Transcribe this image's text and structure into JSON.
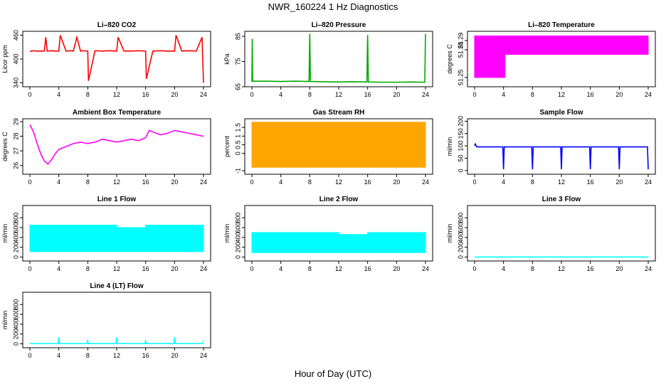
{
  "title": "NWR_160224  1 Hz Diagnostics",
  "x_axis_label": "Hour of Day (UTC)",
  "chart_data": [
    {
      "type": "line",
      "title": "Li–820 CO2",
      "ylabel": "Licor ppm",
      "color": "#ff0000",
      "xlim": [
        0,
        24
      ],
      "xticks": [
        0,
        4,
        8,
        12,
        16,
        20,
        24
      ],
      "ylim": [
        330,
        470
      ],
      "yticks": [
        340,
        400,
        460
      ],
      "series": [
        {
          "x": [
            0,
            0.3,
            0.6,
            1,
            1.5,
            2,
            2.2,
            2.4,
            3,
            3.5,
            4,
            4.2,
            5,
            5.5,
            6,
            6.5,
            7,
            7.2,
            8,
            8.1,
            9,
            10,
            11,
            12,
            12.2,
            13,
            14,
            15,
            16,
            16.1,
            17,
            18,
            19,
            20,
            20.2,
            21,
            22,
            23,
            23.8,
            24
          ],
          "y": [
            420,
            420,
            421,
            420,
            420,
            420,
            455,
            420,
            421,
            420,
            420,
            460,
            420,
            421,
            420,
            455,
            420,
            421,
            420,
            345,
            421,
            420,
            421,
            420,
            455,
            420,
            420,
            421,
            420,
            350,
            420,
            421,
            420,
            420,
            460,
            420,
            421,
            420,
            455,
            340
          ]
        }
      ]
    },
    {
      "type": "line",
      "title": "Li–820 Pressure",
      "ylabel": "kPa",
      "color": "#00aa00",
      "xlim": [
        0,
        24
      ],
      "xticks": [
        0,
        4,
        8,
        12,
        16,
        20,
        24
      ],
      "ylim": [
        65,
        87
      ],
      "yticks": [
        65,
        75,
        85
      ],
      "series": [
        {
          "x": [
            0,
            0.05,
            0.1,
            2,
            4,
            6,
            7.9,
            8,
            8.1,
            10,
            12,
            14,
            15.9,
            16,
            16.1,
            18,
            20,
            22,
            23.9,
            24
          ],
          "y": [
            67,
            84,
            67.2,
            67.2,
            67.1,
            67.2,
            67.1,
            86,
            67.1,
            67,
            66.9,
            67,
            66.9,
            85.5,
            66.9,
            66.8,
            66.8,
            66.9,
            66.8,
            86
          ]
        }
      ]
    },
    {
      "type": "area",
      "title": "Li–820 Temperature",
      "ylabel": "degrees C",
      "color": "#ff00ff",
      "xlim": [
        0,
        24
      ],
      "xticks": [
        0,
        4,
        8,
        12,
        16,
        20,
        24
      ],
      "ylim": [
        51.24,
        51.3
      ],
      "yticks": [
        51.25,
        51.28,
        51.29
      ],
      "series": [
        {
          "x": [
            0,
            4.2,
            4.2,
            24
          ],
          "ylow": [
            51.25,
            51.25,
            51.275,
            51.275
          ],
          "yhigh": [
            51.295,
            51.295,
            51.295,
            51.295
          ]
        }
      ]
    },
    {
      "type": "line",
      "title": "Ambient Box Temperature",
      "ylabel": "degrees C",
      "color": "#ff00ff",
      "xlim": [
        0,
        24
      ],
      "xticks": [
        0,
        4,
        8,
        12,
        16,
        20,
        24
      ],
      "ylim": [
        25.4,
        29.2
      ],
      "yticks": [
        26,
        27,
        28,
        29
      ],
      "series": [
        {
          "x": [
            0,
            0.5,
            1,
            1.5,
            2,
            2.5,
            3,
            3.5,
            4,
            5,
            6,
            7,
            8,
            9,
            10,
            11,
            12,
            13,
            14,
            15,
            16,
            16.5,
            17,
            18,
            19,
            20,
            21,
            22,
            23,
            24
          ],
          "y": [
            28.8,
            28.3,
            27.5,
            26.8,
            26.3,
            26.1,
            26.4,
            26.8,
            27.1,
            27.3,
            27.5,
            27.6,
            27.5,
            27.6,
            27.8,
            27.7,
            27.6,
            27.7,
            27.8,
            27.7,
            27.9,
            28.4,
            28.3,
            28.1,
            28.2,
            28.4,
            28.3,
            28.2,
            28.1,
            28.0
          ]
        }
      ]
    },
    {
      "type": "band",
      "title": "Gas Stream RH",
      "ylabel": "percent",
      "color": "#ffa500",
      "xlim": [
        0,
        24
      ],
      "xticks": [
        0,
        4,
        8,
        12,
        16,
        20,
        24
      ],
      "ylim": [
        -1.2,
        2.0
      ],
      "yticks": [
        -1.0,
        0.0,
        0.5,
        1.0,
        1.5
      ],
      "series": [
        {
          "x": [
            0,
            24
          ],
          "ylow": [
            -0.8,
            -0.8
          ],
          "yhigh": [
            1.8,
            1.8
          ]
        }
      ]
    },
    {
      "type": "line",
      "title": "Sample Flow",
      "ylabel": "ml/min",
      "color": "#0000ff",
      "xlim": [
        0,
        24
      ],
      "xticks": [
        0,
        4,
        8,
        12,
        16,
        20,
        24
      ],
      "ylim": [
        -15,
        210
      ],
      "yticks": [
        0,
        50,
        100,
        150,
        200
      ],
      "series": [
        {
          "x": [
            0,
            0.1,
            0.3,
            3.9,
            4,
            4.1,
            7.9,
            8,
            8.1,
            11.9,
            12,
            12.1,
            15.9,
            16,
            16.1,
            19.9,
            20,
            20.1,
            23.9,
            24
          ],
          "y": [
            100,
            108,
            96,
            96,
            5,
            96,
            96,
            5,
            96,
            96,
            5,
            96,
            96,
            5,
            96,
            96,
            5,
            96,
            96,
            5
          ]
        }
      ]
    },
    {
      "type": "band",
      "title": "Line 1 Flow",
      "ylabel": "ml/min",
      "color": "#00ffff",
      "xlim": [
        0,
        24
      ],
      "xticks": [
        0,
        4,
        8,
        12,
        16,
        20,
        24
      ],
      "ylim": [
        -80,
        1050
      ],
      "yticks": [
        0,
        200,
        400,
        600,
        800
      ],
      "series": [
        {
          "x": [
            0,
            12,
            12,
            16,
            16,
            24
          ],
          "ylow": [
            110,
            110,
            110,
            110,
            110,
            110
          ],
          "yhigh": [
            650,
            650,
            600,
            600,
            650,
            650
          ]
        }
      ]
    },
    {
      "type": "band",
      "title": "Line 2 Flow",
      "ylabel": "ml/min",
      "color": "#00ffff",
      "xlim": [
        0,
        24
      ],
      "xticks": [
        0,
        4,
        8,
        12,
        16,
        20,
        24
      ],
      "ylim": [
        -80,
        1050
      ],
      "yticks": [
        0,
        200,
        400,
        600,
        800
      ],
      "series": [
        {
          "x": [
            0,
            12,
            12,
            16,
            16,
            24
          ],
          "ylow": [
            90,
            90,
            90,
            90,
            90,
            90
          ],
          "yhigh": [
            500,
            500,
            460,
            460,
            500,
            500
          ]
        }
      ]
    },
    {
      "type": "line",
      "title": "Line 3 Flow",
      "ylabel": "ml/min",
      "color": "#00ffff",
      "xlim": [
        0,
        24
      ],
      "xticks": [
        0,
        4,
        8,
        12,
        16,
        20,
        24
      ],
      "ylim": [
        -80,
        1050
      ],
      "yticks": [
        0,
        200,
        400,
        600,
        800
      ],
      "series": [
        {
          "x": [
            0,
            24
          ],
          "y": [
            0,
            0
          ]
        }
      ]
    },
    {
      "type": "line",
      "title": "Line 4 (LT) Flow",
      "ylabel": "ml/min",
      "color": "#00ffff",
      "xlim": [
        0,
        24
      ],
      "xticks": [
        0,
        4,
        8,
        12,
        16,
        20,
        24
      ],
      "ylim": [
        -80,
        1050
      ],
      "yticks": [
        0,
        200,
        400,
        600,
        800
      ],
      "series": [
        {
          "x": [
            0,
            3.9,
            4,
            4.1,
            7.9,
            8,
            8.1,
            11.9,
            12,
            12.1,
            15.9,
            16,
            16.1,
            19.9,
            20,
            20.1,
            23.9,
            24
          ],
          "y": [
            5,
            5,
            130,
            5,
            5,
            60,
            5,
            5,
            130,
            5,
            5,
            60,
            5,
            5,
            130,
            5,
            5,
            60
          ]
        }
      ]
    }
  ]
}
